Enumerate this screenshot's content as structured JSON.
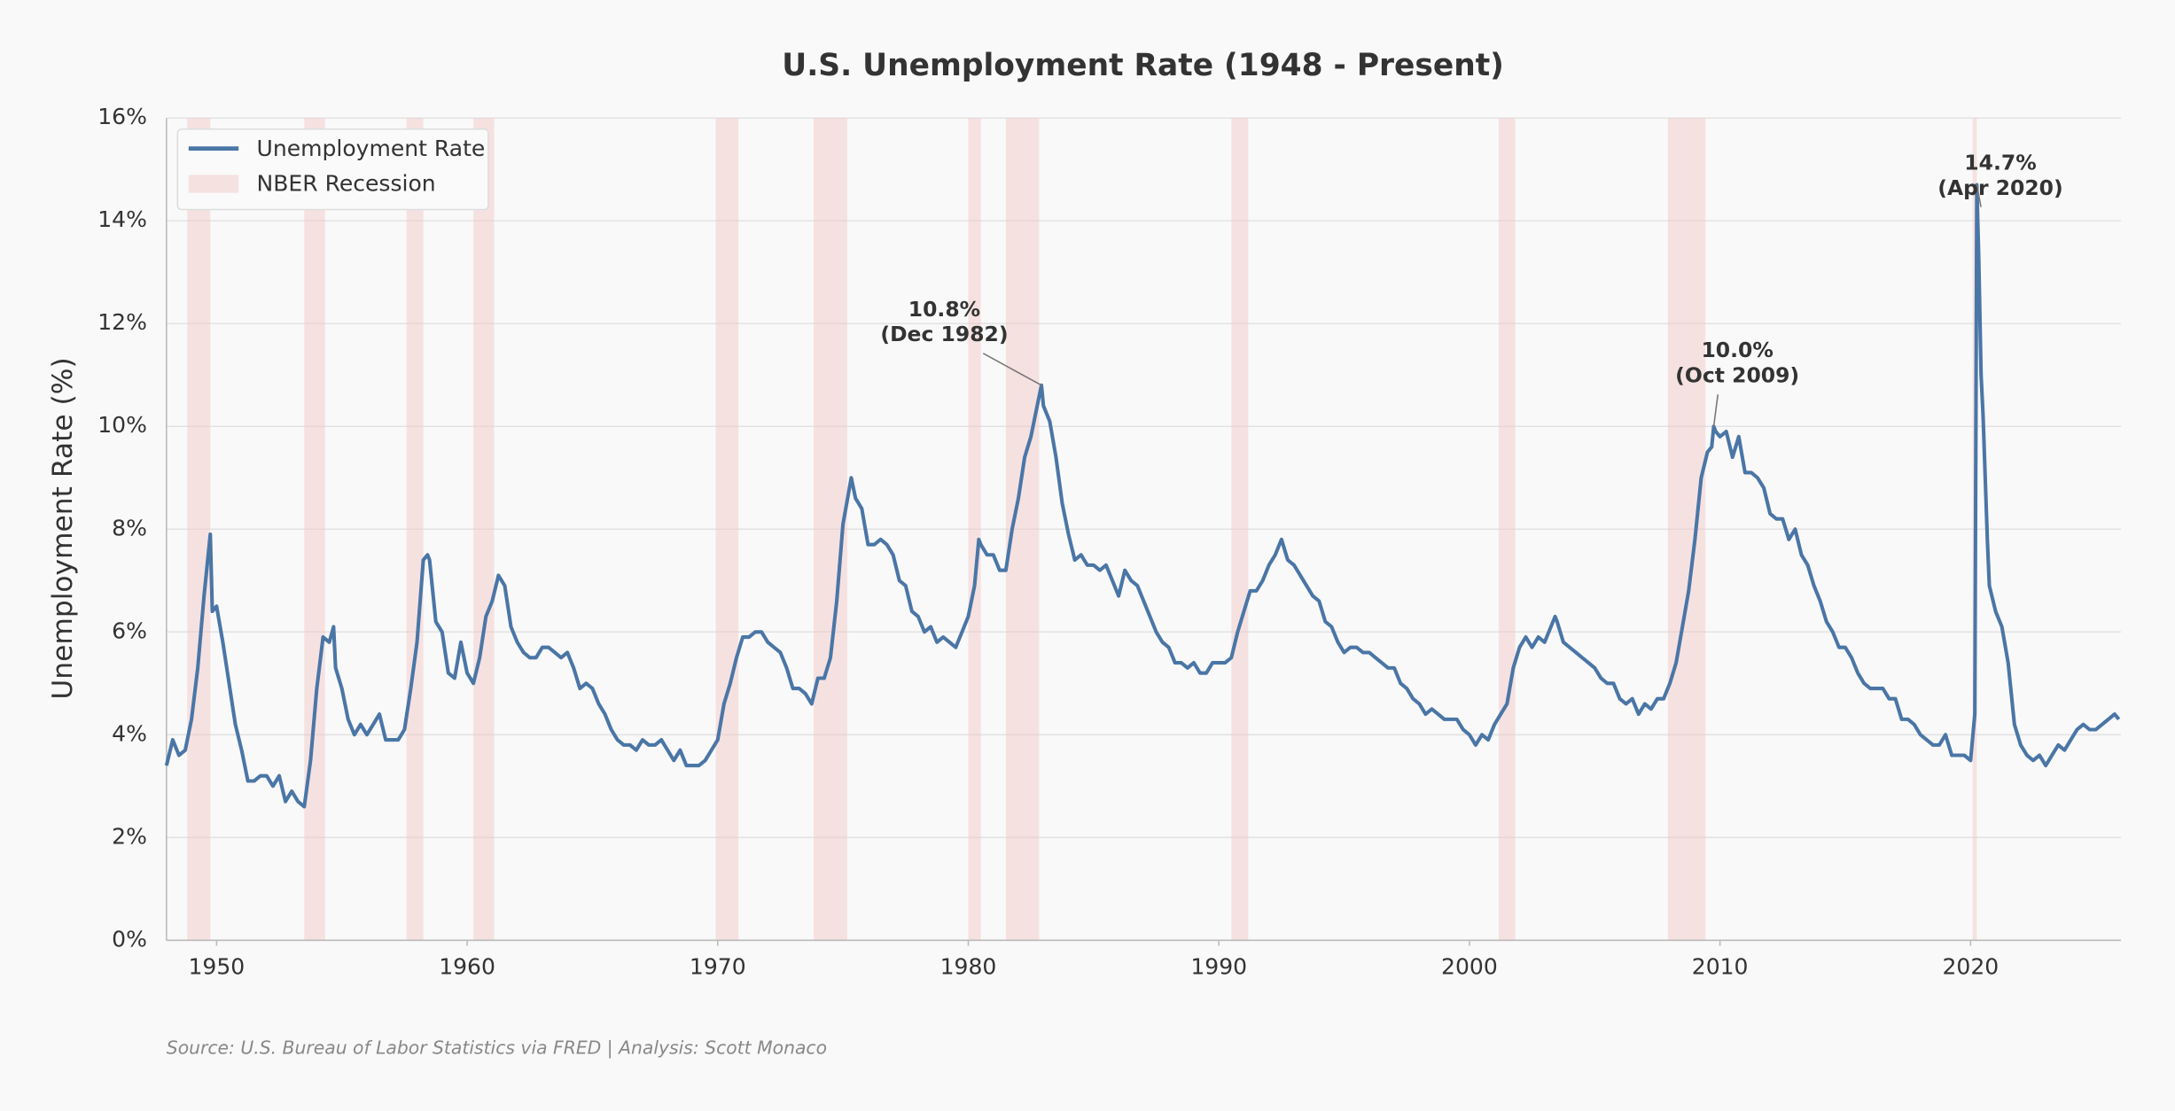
{
  "chart_data": {
    "type": "line",
    "title": "U.S. Unemployment Rate (1948 - Present)",
    "ylabel": "Unemployment Rate (%)",
    "source": "Source: U.S. Bureau of Labor Statistics via FRED | Analysis: Scott Monaco",
    "xlim": [
      1948,
      2026
    ],
    "xticks": [
      1950,
      1960,
      1970,
      1980,
      1990,
      2000,
      2010,
      2020
    ],
    "ylim": [
      0,
      16
    ],
    "yticks": [
      {
        "value": 0,
        "label": "0%"
      },
      {
        "value": 2,
        "label": "2%"
      },
      {
        "value": 4,
        "label": "4%"
      },
      {
        "value": 6,
        "label": "6%"
      },
      {
        "value": 8,
        "label": "8%"
      },
      {
        "value": 10,
        "label": "10%"
      },
      {
        "value": 12,
        "label": "12%"
      },
      {
        "value": 14,
        "label": "14%"
      },
      {
        "value": 16,
        "label": "16%"
      }
    ],
    "grid": true,
    "legend": "upper left",
    "x": [
      1948.0,
      1948.25,
      1948.5,
      1948.75,
      1949.0,
      1949.25,
      1949.5,
      1949.75,
      1949.83,
      1950.0,
      1950.25,
      1950.5,
      1950.75,
      1951.0,
      1951.25,
      1951.5,
      1951.75,
      1952.0,
      1952.25,
      1952.5,
      1952.75,
      1953.0,
      1953.25,
      1953.5,
      1953.75,
      1954.0,
      1954.25,
      1954.5,
      1954.67,
      1954.75,
      1955.0,
      1955.25,
      1955.5,
      1955.75,
      1956.0,
      1956.25,
      1956.5,
      1956.75,
      1957.0,
      1957.25,
      1957.5,
      1957.75,
      1958.0,
      1958.25,
      1958.42,
      1958.5,
      1958.75,
      1959.0,
      1959.25,
      1959.5,
      1959.75,
      1960.0,
      1960.25,
      1960.5,
      1960.75,
      1961.0,
      1961.25,
      1961.5,
      1961.75,
      1962.0,
      1962.25,
      1962.5,
      1962.75,
      1963.0,
      1963.25,
      1963.5,
      1963.75,
      1964.0,
      1964.25,
      1964.5,
      1964.75,
      1965.0,
      1965.25,
      1965.5,
      1965.75,
      1966.0,
      1966.25,
      1966.5,
      1966.75,
      1967.0,
      1967.25,
      1967.5,
      1967.75,
      1968.0,
      1968.25,
      1968.5,
      1968.75,
      1969.0,
      1969.25,
      1969.5,
      1969.75,
      1970.0,
      1970.25,
      1970.5,
      1970.75,
      1971.0,
      1971.25,
      1971.5,
      1971.75,
      1972.0,
      1972.25,
      1972.5,
      1972.75,
      1973.0,
      1973.25,
      1973.5,
      1973.75,
      1974.0,
      1974.25,
      1974.5,
      1974.75,
      1975.0,
      1975.33,
      1975.5,
      1975.75,
      1976.0,
      1976.25,
      1976.5,
      1976.75,
      1977.0,
      1977.25,
      1977.5,
      1977.75,
      1978.0,
      1978.25,
      1978.5,
      1978.75,
      1979.0,
      1979.25,
      1979.5,
      1979.75,
      1980.0,
      1980.25,
      1980.42,
      1980.5,
      1980.75,
      1981.0,
      1981.25,
      1981.5,
      1981.75,
      1982.0,
      1982.25,
      1982.5,
      1982.75,
      1982.92,
      1983.0,
      1983.25,
      1983.5,
      1983.75,
      1984.0,
      1984.25,
      1984.5,
      1984.75,
      1985.0,
      1985.25,
      1985.5,
      1985.75,
      1986.0,
      1986.25,
      1986.5,
      1986.75,
      1987.0,
      1987.25,
      1987.5,
      1987.75,
      1988.0,
      1988.25,
      1988.5,
      1988.75,
      1989.0,
      1989.25,
      1989.5,
      1989.75,
      1990.0,
      1990.25,
      1990.5,
      1990.75,
      1991.0,
      1991.25,
      1991.5,
      1991.75,
      1992.0,
      1992.25,
      1992.5,
      1992.75,
      1993.0,
      1993.25,
      1993.5,
      1993.75,
      1994.0,
      1994.25,
      1994.5,
      1994.75,
      1995.0,
      1995.25,
      1995.5,
      1995.75,
      1996.0,
      1996.25,
      1996.5,
      1996.75,
      1997.0,
      1997.25,
      1997.5,
      1997.75,
      1998.0,
      1998.25,
      1998.5,
      1998.75,
      1999.0,
      1999.25,
      1999.5,
      1999.75,
      2000.0,
      2000.25,
      2000.5,
      2000.75,
      2001.0,
      2001.25,
      2001.5,
      2001.75,
      2002.0,
      2002.25,
      2002.5,
      2002.75,
      2003.0,
      2003.42,
      2003.5,
      2003.75,
      2004.0,
      2004.25,
      2004.5,
      2004.75,
      2005.0,
      2005.25,
      2005.5,
      2005.75,
      2006.0,
      2006.25,
      2006.5,
      2006.75,
      2007.0,
      2007.25,
      2007.5,
      2007.75,
      2008.0,
      2008.25,
      2008.5,
      2008.75,
      2009.0,
      2009.25,
      2009.5,
      2009.67,
      2009.75,
      2009.83,
      2010.0,
      2010.25,
      2010.5,
      2010.75,
      2011.0,
      2011.25,
      2011.5,
      2011.75,
      2012.0,
      2012.25,
      2012.5,
      2012.75,
      2013.0,
      2013.25,
      2013.5,
      2013.75,
      2014.0,
      2014.25,
      2014.5,
      2014.75,
      2015.0,
      2015.25,
      2015.5,
      2015.75,
      2016.0,
      2016.25,
      2016.5,
      2016.75,
      2017.0,
      2017.25,
      2017.5,
      2017.75,
      2018.0,
      2018.25,
      2018.5,
      2018.75,
      2019.0,
      2019.25,
      2019.5,
      2019.75,
      2020.0,
      2020.17,
      2020.25,
      2020.33,
      2020.42,
      2020.5,
      2020.67,
      2020.75,
      2021.0,
      2021.25,
      2021.5,
      2021.75,
      2022.0,
      2022.25,
      2022.5,
      2022.75,
      2023.0,
      2023.25,
      2023.5,
      2023.75,
      2024.0,
      2024.25,
      2024.5,
      2024.75,
      2025.0,
      2025.25,
      2025.5,
      2025.75,
      2025.92
    ],
    "series": [
      {
        "name": "Unemployment Rate",
        "color": "#4a76a6",
        "values": [
          3.4,
          3.9,
          3.6,
          3.7,
          4.3,
          5.3,
          6.7,
          7.9,
          6.4,
          6.5,
          5.8,
          5.0,
          4.2,
          3.7,
          3.1,
          3.1,
          3.2,
          3.2,
          3.0,
          3.2,
          2.7,
          2.9,
          2.7,
          2.6,
          3.5,
          4.9,
          5.9,
          5.8,
          6.1,
          5.3,
          4.9,
          4.3,
          4.0,
          4.2,
          4.0,
          4.2,
          4.4,
          3.9,
          3.9,
          3.9,
          4.1,
          4.9,
          5.8,
          7.4,
          7.5,
          7.4,
          6.2,
          6.0,
          5.2,
          5.1,
          5.8,
          5.2,
          5.0,
          5.5,
          6.3,
          6.6,
          7.1,
          6.9,
          6.1,
          5.8,
          5.6,
          5.5,
          5.5,
          5.7,
          5.7,
          5.6,
          5.5,
          5.6,
          5.3,
          4.9,
          5.0,
          4.9,
          4.6,
          4.4,
          4.1,
          3.9,
          3.8,
          3.8,
          3.7,
          3.9,
          3.8,
          3.8,
          3.9,
          3.7,
          3.5,
          3.7,
          3.4,
          3.4,
          3.4,
          3.5,
          3.7,
          3.9,
          4.6,
          5.0,
          5.5,
          5.9,
          5.9,
          6.0,
          6.0,
          5.8,
          5.7,
          5.6,
          5.3,
          4.9,
          4.9,
          4.8,
          4.6,
          5.1,
          5.1,
          5.5,
          6.6,
          8.1,
          9.0,
          8.6,
          8.4,
          7.7,
          7.7,
          7.8,
          7.7,
          7.5,
          7.0,
          6.9,
          6.4,
          6.3,
          6.0,
          6.1,
          5.8,
          5.9,
          5.8,
          5.7,
          6.0,
          6.3,
          6.9,
          7.8,
          7.7,
          7.5,
          7.5,
          7.2,
          7.2,
          8.0,
          8.6,
          9.4,
          9.8,
          10.4,
          10.8,
          10.4,
          10.1,
          9.4,
          8.5,
          7.9,
          7.4,
          7.5,
          7.3,
          7.3,
          7.2,
          7.3,
          7.0,
          6.7,
          7.2,
          7.0,
          6.9,
          6.6,
          6.3,
          6.0,
          5.8,
          5.7,
          5.4,
          5.4,
          5.3,
          5.4,
          5.2,
          5.2,
          5.4,
          5.4,
          5.4,
          5.5,
          6.0,
          6.4,
          6.8,
          6.8,
          7.0,
          7.3,
          7.5,
          7.8,
          7.4,
          7.3,
          7.1,
          6.9,
          6.7,
          6.6,
          6.2,
          6.1,
          5.8,
          5.6,
          5.7,
          5.7,
          5.6,
          5.6,
          5.5,
          5.4,
          5.3,
          5.3,
          5.0,
          4.9,
          4.7,
          4.6,
          4.4,
          4.5,
          4.4,
          4.3,
          4.3,
          4.3,
          4.1,
          4.0,
          3.8,
          4.0,
          3.9,
          4.2,
          4.4,
          4.6,
          5.3,
          5.7,
          5.9,
          5.7,
          5.9,
          5.8,
          6.3,
          6.2,
          5.8,
          5.7,
          5.6,
          5.5,
          5.4,
          5.3,
          5.1,
          5.0,
          5.0,
          4.7,
          4.6,
          4.7,
          4.4,
          4.6,
          4.5,
          4.7,
          4.7,
          5.0,
          5.4,
          6.1,
          6.8,
          7.8,
          9.0,
          9.5,
          9.6,
          10.0,
          9.9,
          9.8,
          9.9,
          9.4,
          9.8,
          9.1,
          9.1,
          9.0,
          8.8,
          8.3,
          8.2,
          8.2,
          7.8,
          8.0,
          7.5,
          7.3,
          6.9,
          6.6,
          6.2,
          6.0,
          5.7,
          5.7,
          5.5,
          5.2,
          5.0,
          4.9,
          4.9,
          4.9,
          4.7,
          4.7,
          4.3,
          4.3,
          4.2,
          4.0,
          3.9,
          3.8,
          3.8,
          4.0,
          3.6,
          3.6,
          3.6,
          3.5,
          4.4,
          14.7,
          13.2,
          11.0,
          10.2,
          7.8,
          6.9,
          6.4,
          6.1,
          5.4,
          4.2,
          3.8,
          3.6,
          3.5,
          3.6,
          3.4,
          3.6,
          3.8,
          3.7,
          3.9,
          4.1,
          4.2,
          4.1,
          4.1,
          4.2,
          4.3,
          4.4,
          4.3
        ]
      }
    ],
    "recessions": {
      "name": "NBER Recession",
      "color": "#f2c4c4",
      "periods": [
        [
          1948.83,
          1949.75
        ],
        [
          1953.5,
          1954.33
        ],
        [
          1957.58,
          1958.25
        ],
        [
          1960.25,
          1961.08
        ],
        [
          1969.92,
          1970.83
        ],
        [
          1973.83,
          1975.17
        ],
        [
          1980.0,
          1980.5
        ],
        [
          1981.5,
          1982.83
        ],
        [
          1990.5,
          1991.17
        ],
        [
          2001.17,
          2001.83
        ],
        [
          2007.92,
          2009.42
        ],
        [
          2020.08,
          2020.25
        ]
      ]
    },
    "annotations": [
      {
        "text": [
          "10.8%",
          "(Dec 1982)"
        ],
        "x": 1982.92,
        "y": 10.8
      },
      {
        "text": [
          "10.0%",
          "(Oct 2009)"
        ],
        "x": 2009.75,
        "y": 10.0
      },
      {
        "text": [
          "14.7%",
          "(Apr 2020)"
        ],
        "x": 2020.25,
        "y": 14.7
      }
    ]
  }
}
